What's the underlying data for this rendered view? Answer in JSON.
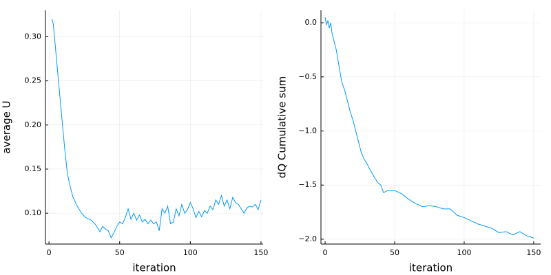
{
  "chart_data": [
    {
      "type": "line",
      "xlabel": "iteration",
      "ylabel": "average U",
      "grid": true,
      "xlim": [
        -2.5,
        151.5
      ],
      "ylim": [
        0.065,
        0.33
      ],
      "xticks": [
        0,
        50,
        100,
        150
      ],
      "yticks": [
        {
          "value": 0.1,
          "label": "0.10"
        },
        0.15,
        {
          "value": 0.2,
          "label": "0.20"
        },
        0.25,
        {
          "value": 0.3,
          "label": "0.30"
        }
      ],
      "x": [
        2,
        3,
        5,
        7,
        9,
        11,
        13,
        15,
        17,
        20,
        23,
        26,
        30,
        33,
        36,
        38,
        40,
        42,
        44,
        46,
        48,
        50,
        52,
        54,
        56,
        58,
        60,
        62,
        64,
        66,
        68,
        70,
        72,
        74,
        76,
        78,
        80,
        82,
        84,
        86,
        88,
        90,
        92,
        94,
        96,
        98,
        100,
        102,
        104,
        106,
        108,
        110,
        112,
        114,
        116,
        118,
        120,
        122,
        124,
        126,
        128,
        130,
        132,
        134,
        136,
        138,
        140,
        142,
        144,
        146,
        148,
        150
      ],
      "series": [
        {
          "color": "#009af9",
          "values": [
            0.32,
            0.315,
            0.28,
            0.245,
            0.21,
            0.175,
            0.145,
            0.13,
            0.118,
            0.108,
            0.1,
            0.095,
            0.092,
            0.087,
            0.079,
            0.085,
            0.082,
            0.08,
            0.072,
            0.078,
            0.085,
            0.09,
            0.088,
            0.095,
            0.105,
            0.093,
            0.1,
            0.092,
            0.098,
            0.09,
            0.093,
            0.088,
            0.092,
            0.088,
            0.09,
            0.08,
            0.105,
            0.1,
            0.108,
            0.088,
            0.09,
            0.105,
            0.097,
            0.11,
            0.1,
            0.104,
            0.112,
            0.105,
            0.095,
            0.102,
            0.096,
            0.103,
            0.1,
            0.108,
            0.104,
            0.115,
            0.11,
            0.12,
            0.108,
            0.115,
            0.105,
            0.118,
            0.112,
            0.11,
            0.105,
            0.1,
            0.106,
            0.108,
            0.107,
            0.11,
            0.104,
            0.115
          ]
        }
      ]
    },
    {
      "type": "line",
      "xlabel": "iteration",
      "ylabel": "dQ Cumulative sum",
      "grid": true,
      "xlim": [
        -3,
        155
      ],
      "ylim": [
        -2.045,
        0.115
      ],
      "xticks": [
        0,
        50,
        100,
        150
      ],
      "yticks": [
        {
          "value": -2,
          "label": "−2.0"
        },
        {
          "value": -1.5,
          "label": "−1.5"
        },
        {
          "value": -1,
          "label": "−1.0"
        },
        {
          "value": -0.5,
          "label": "−0.5"
        },
        {
          "value": 0,
          "label": "0.0"
        }
      ],
      "x": [
        0,
        1,
        2,
        3,
        4,
        5,
        6,
        8,
        10,
        12,
        14,
        16,
        18,
        20,
        22,
        24,
        26,
        28,
        30,
        32,
        35,
        38,
        40,
        42,
        45,
        48,
        50,
        55,
        60,
        65,
        70,
        75,
        80,
        85,
        90,
        95,
        100,
        105,
        110,
        115,
        120,
        125,
        130,
        135,
        140,
        145,
        148,
        150
      ],
      "series": [
        {
          "color": "#009af9",
          "values": [
            0.05,
            -0.02,
            0.02,
            -0.05,
            0.0,
            -0.1,
            -0.15,
            -0.25,
            -0.4,
            -0.55,
            -0.62,
            -0.72,
            -0.82,
            -0.9,
            -1.0,
            -1.1,
            -1.2,
            -1.26,
            -1.3,
            -1.35,
            -1.42,
            -1.48,
            -1.5,
            -1.57,
            -1.55,
            -1.55,
            -1.55,
            -1.58,
            -1.63,
            -1.67,
            -1.7,
            -1.69,
            -1.7,
            -1.72,
            -1.72,
            -1.78,
            -1.8,
            -1.83,
            -1.86,
            -1.88,
            -1.9,
            -1.94,
            -1.93,
            -1.96,
            -1.93,
            -1.97,
            -1.98,
            -1.99
          ]
        }
      ]
    }
  ]
}
